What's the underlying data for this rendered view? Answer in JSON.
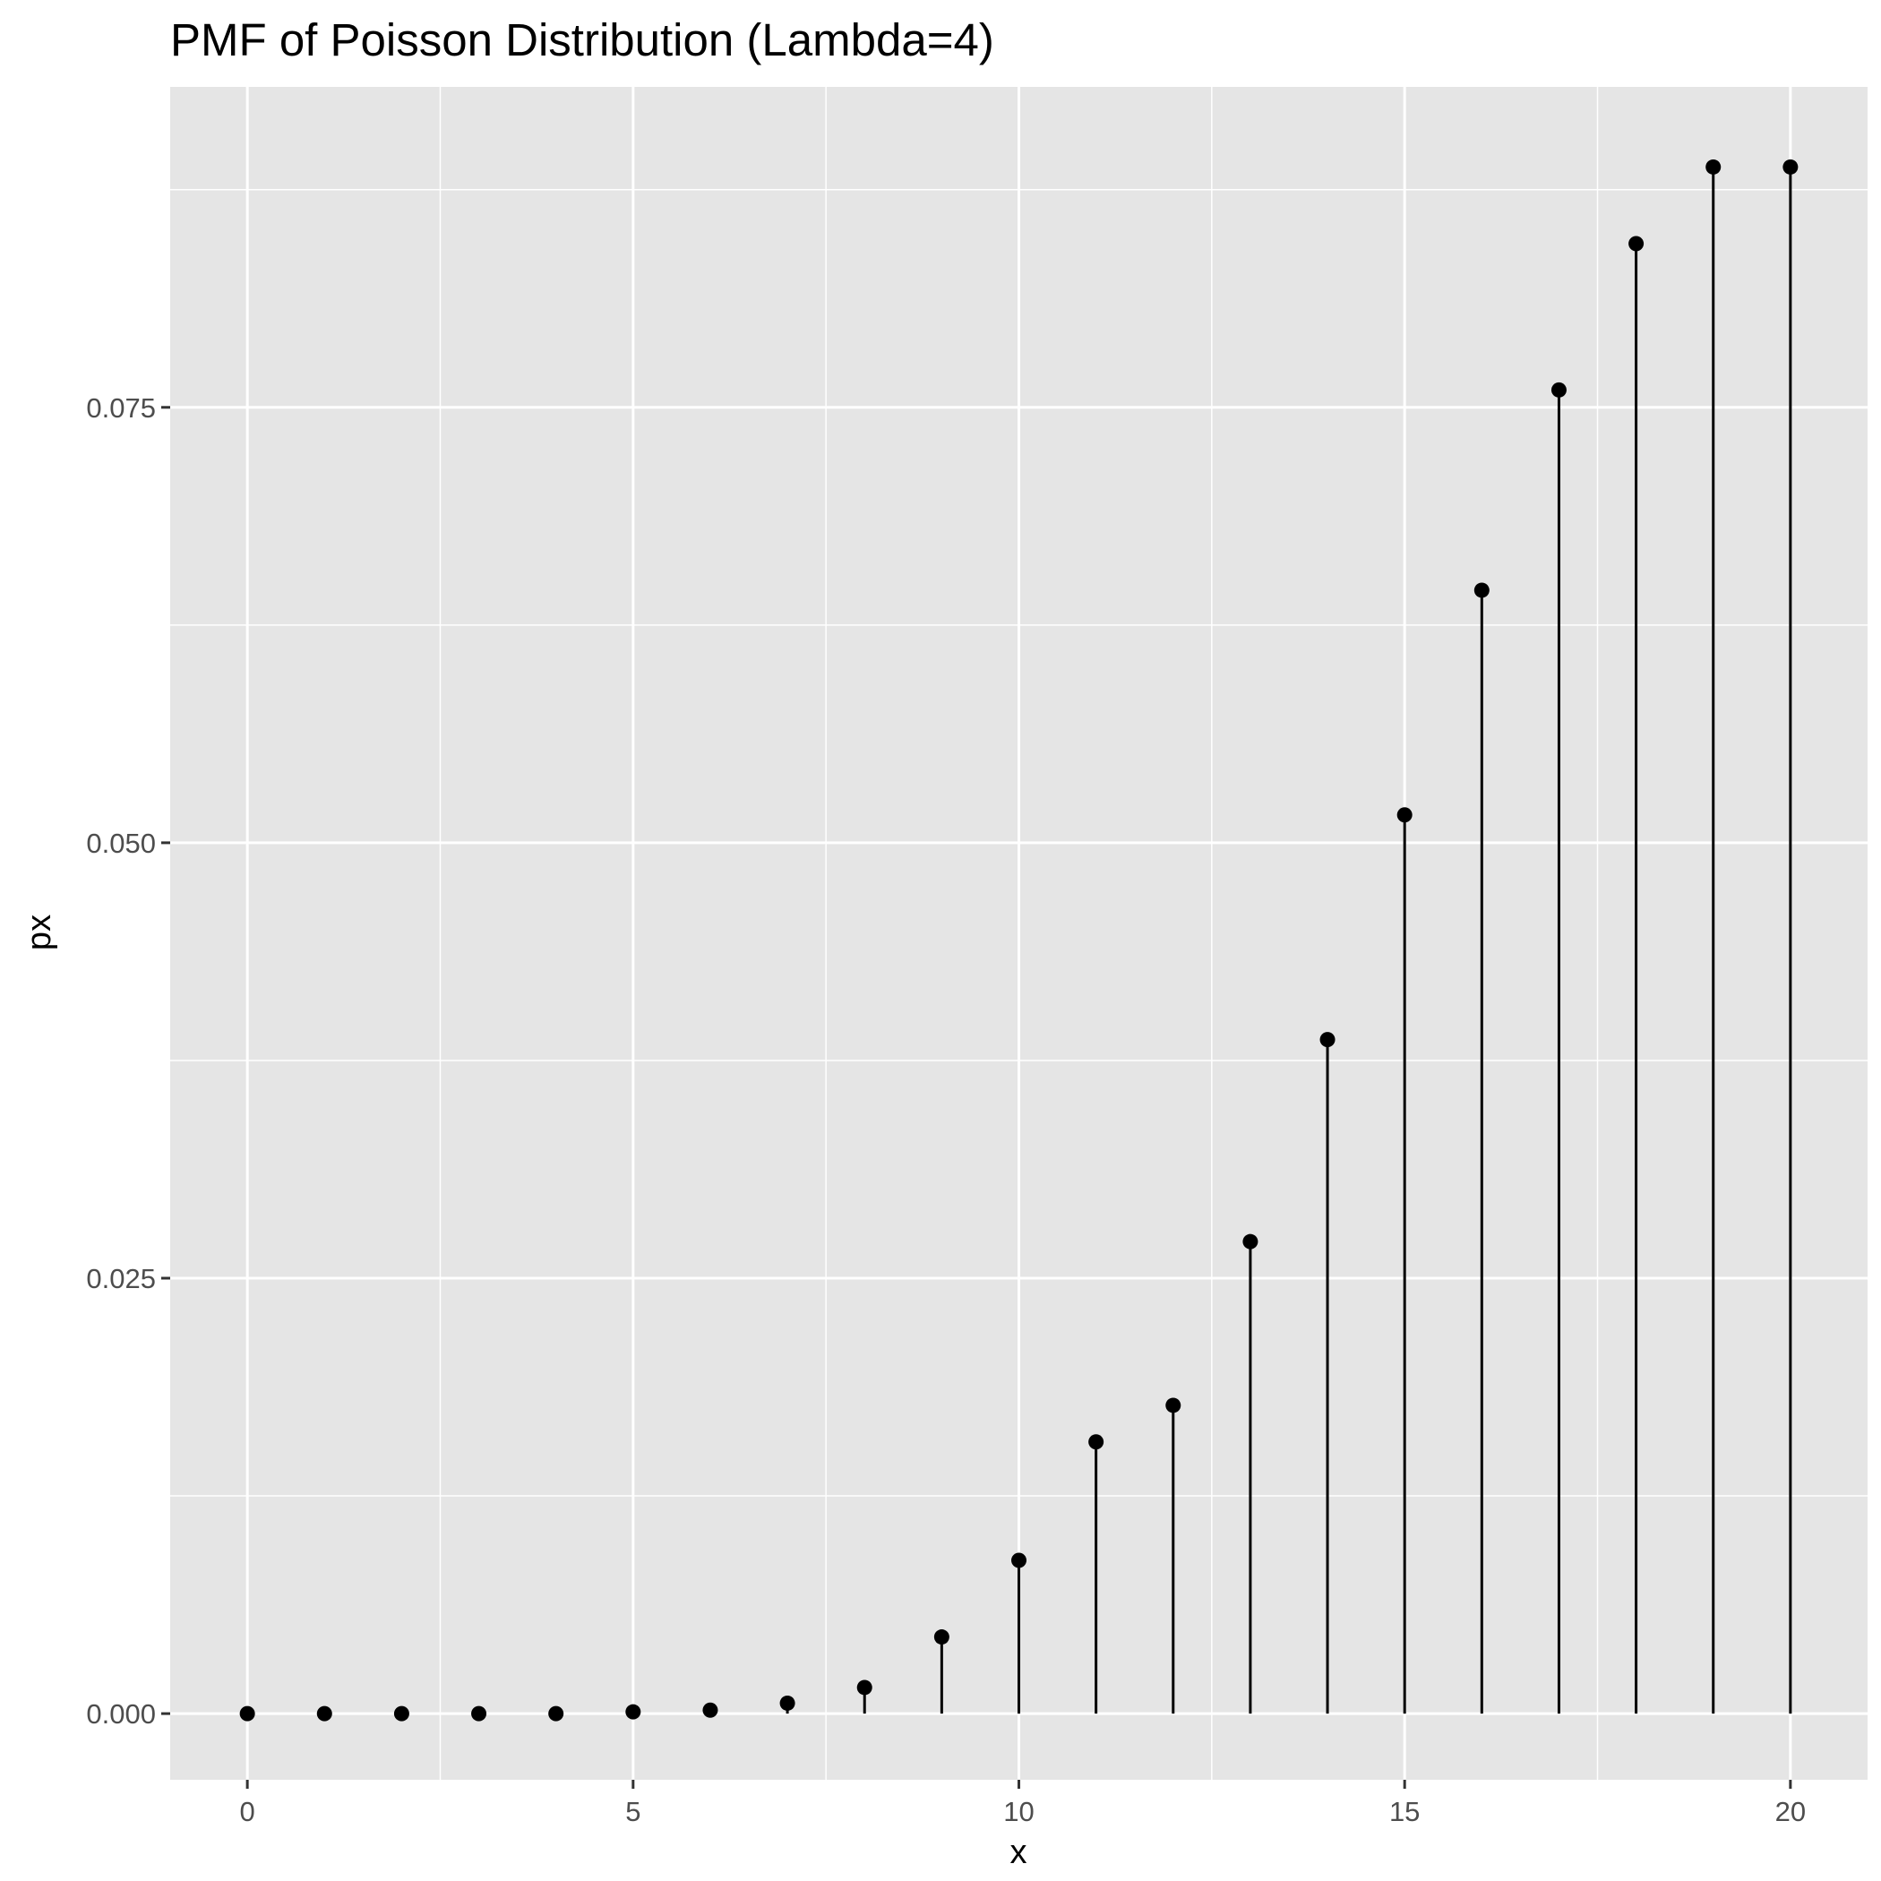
{
  "chart_data": {
    "type": "lollipop",
    "title": "PMF of Poisson Distribution (Lambda=4)",
    "xlabel": "x",
    "ylabel": "px",
    "x": [
      0,
      1,
      2,
      3,
      4,
      5,
      6,
      7,
      8,
      9,
      10,
      11,
      12,
      13,
      14,
      15,
      16,
      17,
      18,
      19,
      20
    ],
    "values": [
      0.0,
      0.0,
      0.0,
      0.0,
      0.0,
      0.0001,
      0.0002,
      0.0006,
      0.0015,
      0.0044,
      0.0088,
      0.0156,
      0.0177,
      0.0271,
      0.0387,
      0.0516,
      0.0645,
      0.076,
      0.0844,
      0.0888,
      0.0888
    ],
    "xlim": [
      -1,
      21
    ],
    "ylim": [
      -0.0038,
      0.0934
    ],
    "x_ticks": [
      0,
      5,
      10,
      15,
      20
    ],
    "x_tick_labels": [
      "0",
      "5",
      "10",
      "15",
      "20"
    ],
    "y_ticks": [
      0,
      0.025,
      0.05,
      0.075
    ],
    "y_tick_labels": [
      "0.000",
      "0.025",
      "0.050",
      "0.075"
    ],
    "grid": true,
    "colors": {
      "panel": "#e5e5e5",
      "grid": "#ffffff",
      "marks": "#000000"
    }
  }
}
